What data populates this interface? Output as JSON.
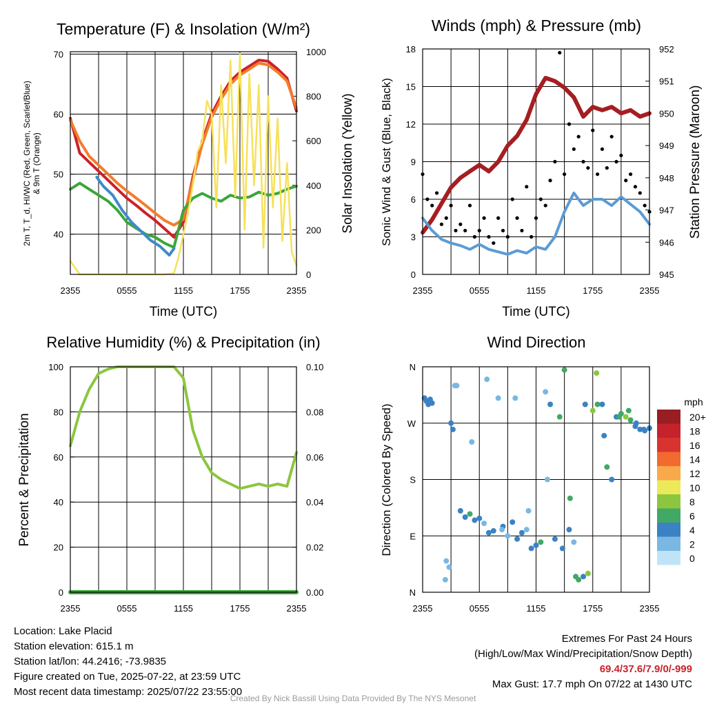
{
  "footer": {
    "location": "Location: Lake Placid",
    "elevation": "Station elevation: 615.1 m",
    "latlon": "Station lat/lon: 44.2416; -73.9835",
    "created": "Figure created on Tue, 2025-07-22, at 23:59 UTC",
    "recent": "Most recent data timestamp: 2025/07/22 23:55:00",
    "extremes_title": "Extremes For Past 24 Hours",
    "extremes_desc": "(High/Low/Max Wind/Precipitation/Snow Depth)",
    "extremes_values": "69.4/37.6/7.9/0/-999",
    "max_gust": "Max Gust: 17.7 mph On 07/22 at 1430 UTC",
    "credit": "Created By Nick Bassill Using Data Provided By The NYS Mesonet"
  },
  "colors": {
    "temp_red": "#cc2127",
    "wc_green": "#3aa63a",
    "dew_blue": "#3f8ac9",
    "t9_orange": "#f47c2a",
    "solar_yellow": "#f7e15a",
    "wind_blue": "#5b9bd5",
    "gust_black": "#000000",
    "pressure_maroon": "#a51e22",
    "rh_green": "#8cc63f",
    "precip_green": "#39a33a"
  },
  "chart_data": [
    {
      "type": "line",
      "title": "Temperature (F) & Insolation (W/m²)",
      "xlabel": "Time (UTC)",
      "ylabel_left": "2m T, T_d, HI/WC (Red, Green, Scarlet/Blue) & 9m T (Orange)",
      "ylabel_right": "Solar Insolation (Yellow)",
      "x_ticks": [
        "2355",
        "0555",
        "1155",
        "1755",
        "2355"
      ],
      "y_left_ticks": [
        40,
        50,
        60,
        70
      ],
      "ylim_left": [
        33.3,
        70.4
      ],
      "y_right_ticks": [
        0,
        200,
        400,
        600,
        800,
        1000
      ],
      "ylim_right": [
        0,
        1000
      ],
      "series": [
        {
          "name": "2m T",
          "color": "#cc2127",
          "x": [
            0,
            1,
            2,
            3,
            4,
            5,
            6,
            7,
            8,
            9,
            10,
            11,
            12,
            13,
            14,
            15,
            16,
            17,
            18,
            19,
            20,
            21,
            22,
            23,
            24
          ],
          "values": [
            59.3,
            53.5,
            52.0,
            50.5,
            49.0,
            47.5,
            46.0,
            44.8,
            43.5,
            42.3,
            40.9,
            39.5,
            42.0,
            49.5,
            55.5,
            60.0,
            63.0,
            65.5,
            67.0,
            68.0,
            69.0,
            68.8,
            67.5,
            66.0,
            60.5
          ]
        },
        {
          "name": "9m T",
          "color": "#f47c2a",
          "x": [
            0,
            1,
            2,
            3,
            4,
            5,
            6,
            7,
            8,
            9,
            10,
            11,
            12,
            13,
            14,
            15,
            16,
            17,
            18,
            19,
            20,
            21,
            22,
            23,
            24
          ],
          "values": [
            59.0,
            55.5,
            53.0,
            51.5,
            50.0,
            48.5,
            47.2,
            46.0,
            44.8,
            43.5,
            42.3,
            41.5,
            42.5,
            49.0,
            55.0,
            59.5,
            62.5,
            65.0,
            66.5,
            67.5,
            68.5,
            68.2,
            67.0,
            65.5,
            61.0
          ]
        },
        {
          "name": "Td",
          "color": "#3aa63a",
          "x": [
            0,
            1,
            2,
            3,
            4,
            5,
            6,
            7,
            8,
            9,
            10,
            11,
            12,
            13,
            14,
            15,
            16,
            17,
            18,
            19,
            20,
            21,
            22,
            23,
            24
          ],
          "values": [
            47.5,
            48.5,
            47.5,
            46.5,
            45.5,
            44.0,
            42.0,
            41.0,
            40.0,
            39.5,
            38.5,
            37.8,
            44.0,
            46.0,
            46.8,
            46.0,
            45.5,
            46.5,
            46.0,
            46.2,
            47.0,
            46.5,
            46.8,
            47.5,
            48.0
          ]
        },
        {
          "name": "HI/WC",
          "color": "#3f8ac9",
          "x": [
            2.8,
            3.5,
            4.5,
            5.5,
            6.5,
            7.5,
            8.5,
            9.5,
            10.5,
            11.0
          ],
          "values": [
            49.5,
            48.0,
            46.5,
            44.0,
            42.0,
            40.5,
            39.0,
            38.0,
            36.5,
            37.6
          ]
        },
        {
          "name": "Solar",
          "color": "#f7e15a",
          "x": [
            0,
            1,
            2,
            3,
            4,
            5,
            6,
            7,
            8,
            9,
            10,
            11,
            11.5,
            12,
            12.5,
            13,
            13.5,
            14,
            14.5,
            15,
            15.5,
            16,
            16.5,
            17,
            17.5,
            18,
            18.5,
            19,
            19.5,
            20,
            20.5,
            21,
            21.5,
            22,
            22.5,
            23,
            23.5,
            24
          ],
          "values": [
            60,
            0,
            0,
            0,
            0,
            0,
            0,
            0,
            0,
            0,
            0,
            5,
            80,
            180,
            280,
            400,
            550,
            600,
            780,
            720,
            300,
            850,
            500,
            960,
            350,
            990,
            200,
            900,
            400,
            850,
            120,
            800,
            300,
            700,
            150,
            500,
            100,
            40
          ]
        }
      ]
    },
    {
      "type": "line",
      "title": "Winds (mph) & Pressure (mb)",
      "xlabel": "Time (UTC)",
      "ylabel_left": "Sonic Wind & Gust (Blue, Black)",
      "ylabel_right": "Station Pressure (Maroon)",
      "x_ticks": [
        "2355",
        "0555",
        "1155",
        "1755",
        "2355"
      ],
      "y_left_ticks": [
        0,
        3,
        6,
        9,
        12,
        15,
        18
      ],
      "ylim_left": [
        0,
        18
      ],
      "y_right_ticks": [
        945,
        946,
        947,
        948,
        949,
        950,
        951,
        952
      ],
      "ylim_right": [
        945,
        952
      ],
      "series": [
        {
          "name": "Pressure",
          "color": "#a51e22",
          "x": [
            0,
            1,
            2,
            3,
            4,
            5,
            6,
            7,
            8,
            9,
            10,
            11,
            12,
            13,
            14,
            15,
            16,
            17,
            18,
            19,
            20,
            21,
            22,
            23,
            24
          ],
          "values": [
            946.3,
            946.7,
            947.2,
            947.7,
            948.0,
            948.2,
            948.4,
            948.2,
            948.5,
            949.0,
            949.3,
            949.8,
            950.6,
            951.1,
            951.0,
            950.8,
            950.5,
            949.9,
            950.2,
            950.1,
            950.2,
            950.0,
            950.1,
            949.9,
            950.0
          ]
        },
        {
          "name": "Sonic Wind",
          "color": "#5b9bd5",
          "x": [
            0,
            1,
            2,
            3,
            4,
            5,
            6,
            7,
            8,
            9,
            10,
            11,
            12,
            13,
            14,
            15,
            16,
            17,
            18,
            19,
            20,
            21,
            22,
            23,
            24
          ],
          "values": [
            4.5,
            3.5,
            2.8,
            2.5,
            2.3,
            2.0,
            2.4,
            2.0,
            1.8,
            1.6,
            1.9,
            1.7,
            2.2,
            2.0,
            3.0,
            5.0,
            6.5,
            5.5,
            6.0,
            6.0,
            5.5,
            6.2,
            5.6,
            5.0,
            4.0
          ]
        },
        {
          "name": "Gust",
          "color": "#000000",
          "x": [
            0,
            0.5,
            1,
            1.5,
            2,
            2.5,
            3,
            3.5,
            4,
            4.5,
            5,
            5.5,
            6,
            6.5,
            7,
            7.5,
            8,
            8.5,
            9,
            9.5,
            10,
            10.5,
            11,
            11.5,
            12,
            12.5,
            13,
            13.5,
            14,
            14.5,
            15,
            15.5,
            16,
            16.5,
            17,
            17.5,
            18,
            18.5,
            19,
            19.5,
            20,
            20.5,
            21,
            21.5,
            22,
            22.5,
            23,
            23.5,
            24
          ],
          "values": [
            8.0,
            6.0,
            5.5,
            6.5,
            4.0,
            4.5,
            5.5,
            3.5,
            4.0,
            3.5,
            5.5,
            3.0,
            3.5,
            4.5,
            3.0,
            2.5,
            4.5,
            3.5,
            3.0,
            6.0,
            4.5,
            3.5,
            7.0,
            3.0,
            4.5,
            6.0,
            5.5,
            7.5,
            9.0,
            17.7,
            8.0,
            12.0,
            10.0,
            11.0,
            9.0,
            8.5,
            11.5,
            8.0,
            10.0,
            8.5,
            11.0,
            9.0,
            9.5,
            7.5,
            8.0,
            7.0,
            6.5,
            5.5,
            5.0
          ]
        }
      ]
    },
    {
      "type": "line",
      "title": "Relative Humidity (%) & Precipitation (in)",
      "ylabel_left": "Percent & Precipitation",
      "x_ticks": [
        "2355",
        "0555",
        "1155",
        "1755",
        "2355"
      ],
      "y_left_ticks": [
        0,
        20,
        40,
        60,
        80,
        100
      ],
      "ylim_left": [
        0,
        100
      ],
      "y_right_ticks": [
        "0.00",
        "0.02",
        "0.04",
        "0.06",
        "0.08",
        "0.10"
      ],
      "ylim_right": [
        0,
        0.1
      ],
      "series": [
        {
          "name": "RH",
          "color": "#8cc63f",
          "x": [
            0,
            1,
            2,
            3,
            4,
            5,
            6,
            7,
            8,
            9,
            10,
            11,
            12,
            13,
            14,
            15,
            16,
            17,
            18,
            19,
            20,
            21,
            22,
            23,
            24
          ],
          "values": [
            65,
            80,
            90,
            97,
            99,
            100,
            100,
            100,
            100,
            100,
            100,
            100,
            95,
            72,
            60,
            53,
            50,
            48,
            46,
            47,
            48,
            47,
            48,
            47,
            62
          ]
        },
        {
          "name": "Precip",
          "color": "#39a33a",
          "x": [
            0,
            24
          ],
          "values": [
            0,
            0
          ]
        }
      ]
    },
    {
      "type": "scatter",
      "title": "Wind Direction",
      "ylabel": "Direction (Colored By Speed)",
      "x_ticks": [
        "2355",
        "0555",
        "1155",
        "1755",
        "2355"
      ],
      "y_ticks": [
        "N",
        "E",
        "S",
        "W",
        "N"
      ],
      "ylim": [
        0,
        360
      ],
      "legend_title": "mph",
      "legend_labels": [
        "20+",
        "18",
        "16",
        "14",
        "12",
        "10",
        "8",
        "6",
        "4",
        "2",
        "0"
      ],
      "legend_colors": [
        "#991e24",
        "#c4232b",
        "#d9332f",
        "#f26a2e",
        "#f9a84a",
        "#ece95b",
        "#8cc63f",
        "#42a866",
        "#3b82c4",
        "#7ab8e3",
        "#bfe4f7"
      ],
      "series": [
        {
          "name": "Direction",
          "x": [
            0.2,
            0.4,
            0.6,
            0.8,
            1.0,
            2.5,
            2.8,
            3.0,
            3.2,
            3.4,
            4.0,
            4.5,
            5.0,
            5.5,
            6.0,
            6.5,
            7.0,
            7.5,
            8.0,
            8.5,
            9.0,
            9.5,
            10.0,
            10.5,
            11.0,
            11.5,
            12.0,
            12.5,
            13.0,
            13.5,
            14.0,
            14.5,
            15.0,
            15.5,
            16.0,
            16.5,
            17.0,
            17.5,
            18.0,
            18.5,
            19.0,
            19.5,
            20.0,
            20.5,
            21.0,
            21.5,
            22.0,
            22.5,
            23.0,
            23.5,
            24.0,
            2.4,
            3.6,
            5.2,
            6.8,
            8.4,
            9.8,
            11.2,
            13.2,
            14.8,
            15.6,
            16.2,
            17.2,
            18.4,
            19.2,
            20.8,
            21.8,
            22.6,
            23.4
          ],
          "values": [
            310,
            305,
            300,
            308,
            302,
            50,
            40,
            270,
            260,
            330,
            130,
            120,
            125,
            115,
            118,
            110,
            95,
            98,
            310,
            105,
            90,
            112,
            85,
            95,
            100,
            70,
            75,
            80,
            320,
            300,
            85,
            280,
            355,
            100,
            80,
            20,
            25,
            30,
            290,
            300,
            300,
            200,
            180,
            280,
            285,
            280,
            275,
            265,
            260,
            258,
            262,
            20,
            330,
            240,
            340,
            100,
            310,
            130,
            180,
            70,
            150,
            25,
            300,
            350,
            250,
            280,
            290,
            270,
            260
          ],
          "speed": [
            3,
            4,
            4,
            3,
            4,
            2,
            1,
            3,
            4,
            2,
            3,
            4,
            6,
            4,
            3,
            2,
            3,
            4,
            2,
            3,
            2,
            4,
            3,
            3,
            2,
            3,
            4,
            6,
            2,
            3,
            4,
            5,
            6,
            3,
            2,
            6,
            4,
            7,
            8,
            5,
            4,
            5,
            3,
            4,
            6,
            7,
            5,
            4,
            3,
            4,
            3,
            1,
            2,
            1,
            1,
            2,
            1,
            2,
            1,
            4,
            6,
            5,
            3,
            7,
            3,
            6,
            5,
            4,
            3
          ]
        }
      ]
    }
  ]
}
